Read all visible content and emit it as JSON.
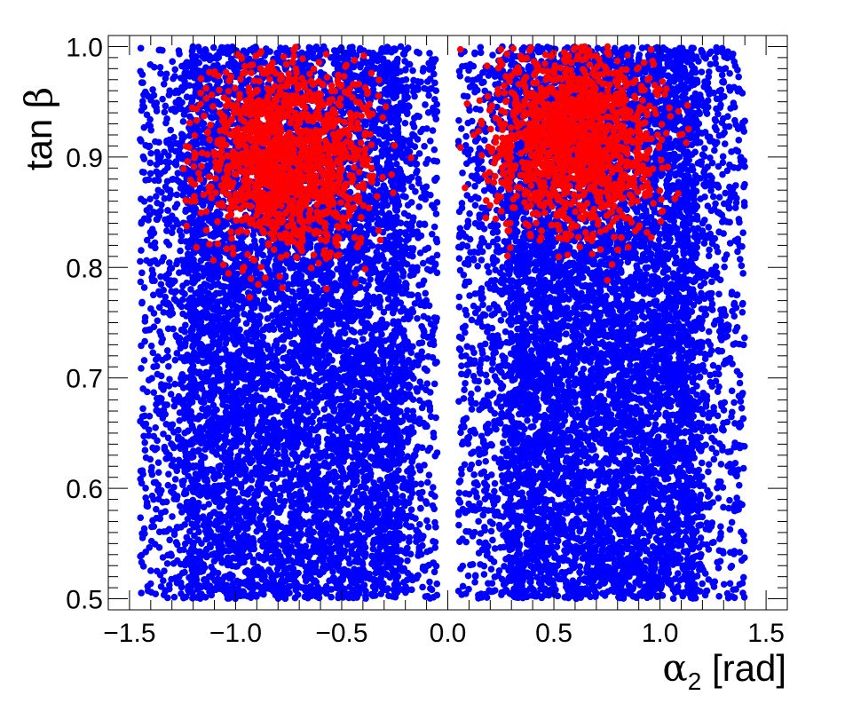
{
  "chart_data": {
    "type": "scatter",
    "title": "",
    "xlabel": "α₂ [rad]",
    "ylabel": "tan β",
    "xlabel_parts": {
      "symbol": "α",
      "subscript": "2",
      "unit": " [rad]"
    },
    "ylabel_parts": {
      "prefix": "tan ",
      "symbol": "β"
    },
    "xlim": [
      -1.6,
      1.6
    ],
    "ylim": [
      0.49,
      1.01
    ],
    "x_ticks": [
      -1.5,
      -1.0,
      -0.5,
      0.0,
      0.5,
      1.0,
      1.5
    ],
    "x_tick_labels": [
      "−1.5",
      "−1.0",
      "−0.5",
      "0.0",
      "0.5",
      "1.0",
      "1.5"
    ],
    "y_ticks": [
      0.5,
      0.6,
      0.7,
      0.8,
      0.9,
      1.0
    ],
    "y_tick_labels": [
      "0.5",
      "0.6",
      "0.7",
      "0.8",
      "0.9",
      "1.0"
    ],
    "grid": false,
    "legend": "none",
    "series": [
      {
        "color": "#0000ff",
        "regions": [
          {
            "x": [
              -1.45,
              -0.05
            ],
            "y": [
              0.5,
              1.0
            ],
            "core_x": [
              -1.2,
              -0.25
            ],
            "density": "high"
          },
          {
            "x": [
              0.05,
              1.4
            ],
            "y": [
              0.5,
              1.0
            ],
            "core_x": [
              0.3,
              1.15
            ],
            "density": "high"
          }
        ]
      },
      {
        "color": "#ff0000",
        "regions": [
          {
            "x": [
              -1.25,
              -0.15
            ],
            "y": [
              0.75,
              1.0
            ],
            "peak": [
              -0.75,
              0.9
            ],
            "density": "medium"
          },
          {
            "x": [
              0.05,
              1.3
            ],
            "y": [
              0.75,
              1.0
            ],
            "peak": [
              0.6,
              0.92
            ],
            "density": "medium"
          }
        ]
      }
    ]
  }
}
